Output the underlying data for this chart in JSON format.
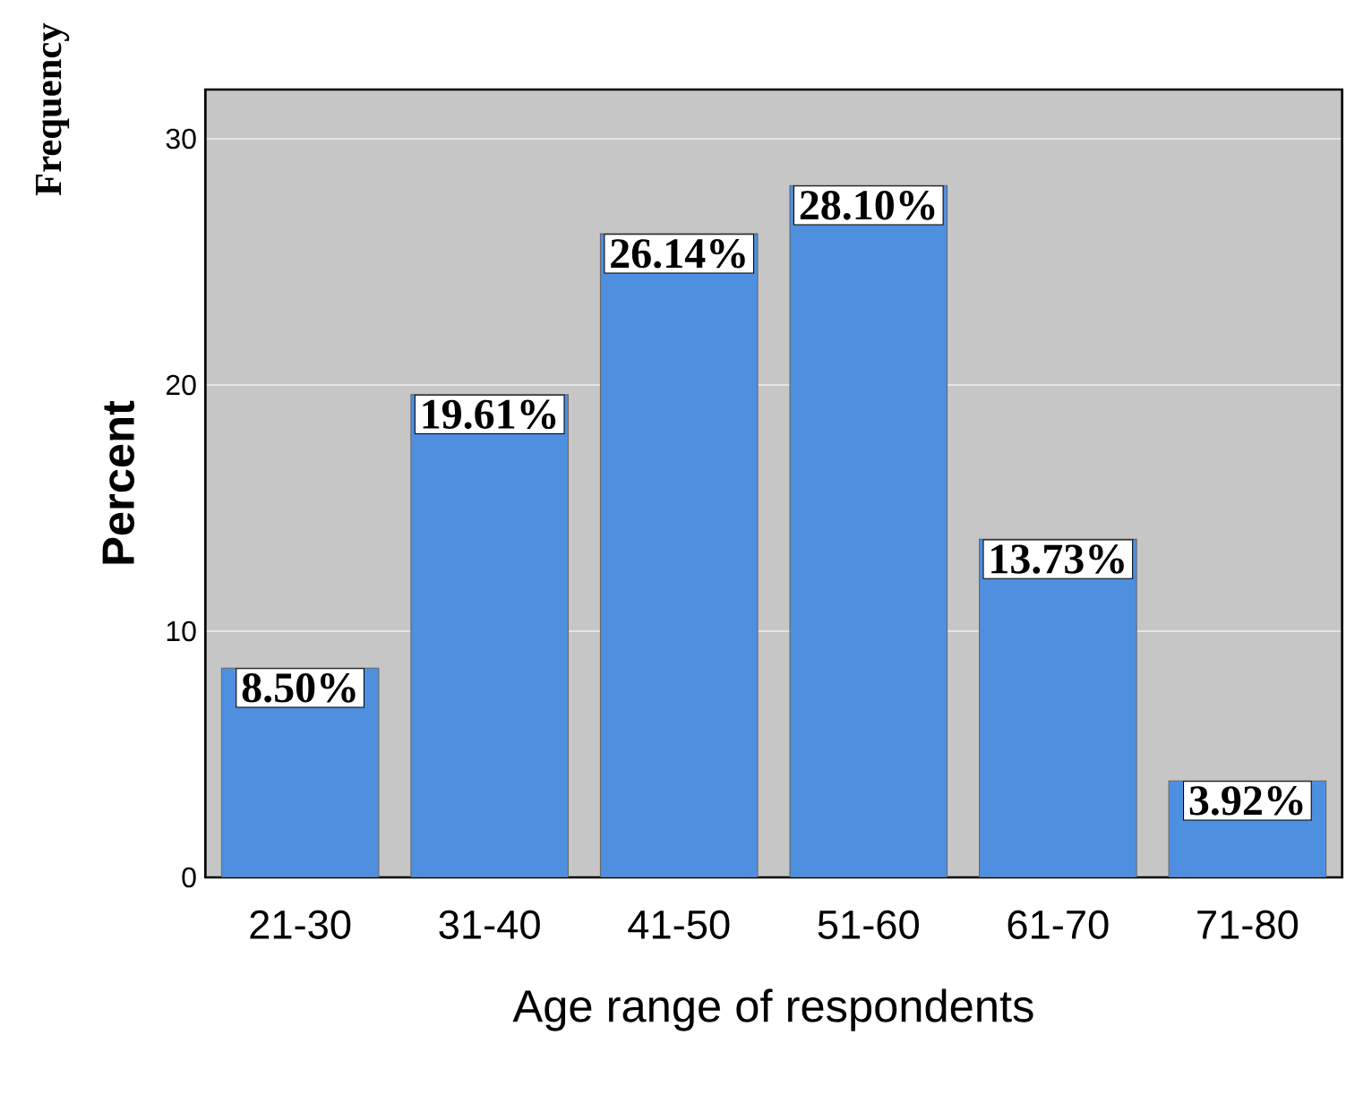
{
  "chart_data": {
    "type": "bar",
    "xlabel": "Age range of respondents",
    "ylabel": "Percent",
    "annotations": [
      "Frequency"
    ],
    "categories": [
      "21-30",
      "31-40",
      "41-50",
      "51-60",
      "61-70",
      "71-80"
    ],
    "values": [
      8.5,
      19.61,
      26.14,
      28.1,
      13.73,
      3.92
    ],
    "value_labels": [
      "8.50%",
      "19.61%",
      "26.14%",
      "28.10%",
      "13.73%",
      "3.92%"
    ],
    "color": "#4f8fe0",
    "ylim": [
      0,
      32
    ],
    "yticks": [
      0,
      10,
      20,
      30
    ],
    "grid": "y"
  }
}
